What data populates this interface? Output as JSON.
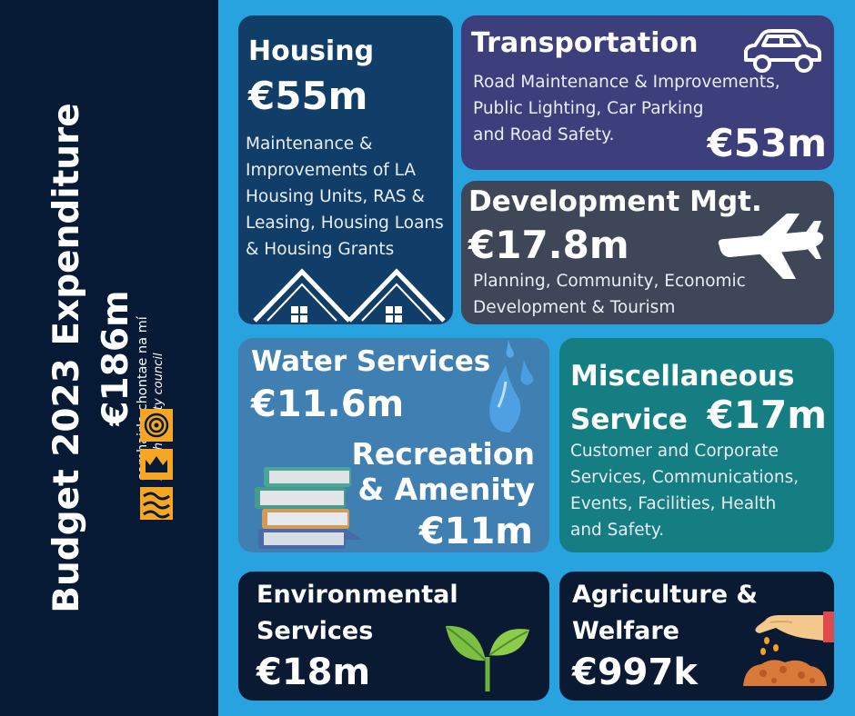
{
  "sidebar": {
    "title_line1": "Budget 2023 Expenditure",
    "title_line2": "€186m",
    "council_irish": "comhairle chontae na mí",
    "council_english": "meath county council"
  },
  "cards": {
    "housing": {
      "title": "Housing",
      "amount": "€55m",
      "desc_lines": [
        "Maintenance &",
        "Improvements of LA",
        "Housing Units, RAS &",
        "Leasing, Housing Loans",
        "& Housing Grants"
      ]
    },
    "transportation": {
      "title": "Transportation",
      "amount": "€53m",
      "desc_lines": [
        "Road Maintenance & Improvements,",
        "Public Lighting, Car Parking",
        "and Road Safety."
      ]
    },
    "development": {
      "title": "Development Mgt.",
      "amount": "€17.8m",
      "desc_lines": [
        "Planning, Community, Economic",
        "Development & Tourism"
      ]
    },
    "water": {
      "title": "Water Services",
      "amount": "€11.6m"
    },
    "recreation": {
      "title_line1": "Recreation",
      "title_line2": "& Amenity",
      "amount": "€11m"
    },
    "misc": {
      "title_line1": "Miscellaneous",
      "title_line2": "Service",
      "amount": "€17m",
      "desc_lines": [
        "Customer and Corporate",
        "Services, Communications,",
        "Events, Facilities, Health",
        "and Safety."
      ]
    },
    "environmental": {
      "title_line1": "Environmental",
      "title_line2": "Services",
      "amount": "€18m"
    },
    "agriculture": {
      "title_line1": "Agriculture &",
      "title_line2": "Welfare",
      "amount": "€997k"
    }
  },
  "icons": [
    "house-icon",
    "car-icon",
    "airplane-icon",
    "water-drops-icon",
    "books-icon",
    "plant-icon",
    "seed-hand-icon",
    "council-logo"
  ],
  "colors": {
    "background": "#29a3e0",
    "sidebar": "#061a36",
    "housing": "#113e68",
    "transportation": "#3c3f7c",
    "development": "#3e4657",
    "water": "#3f7fb2",
    "misc": "#147e82",
    "dark_card": "#0b1a33",
    "logo_orange": "#f6a623"
  }
}
